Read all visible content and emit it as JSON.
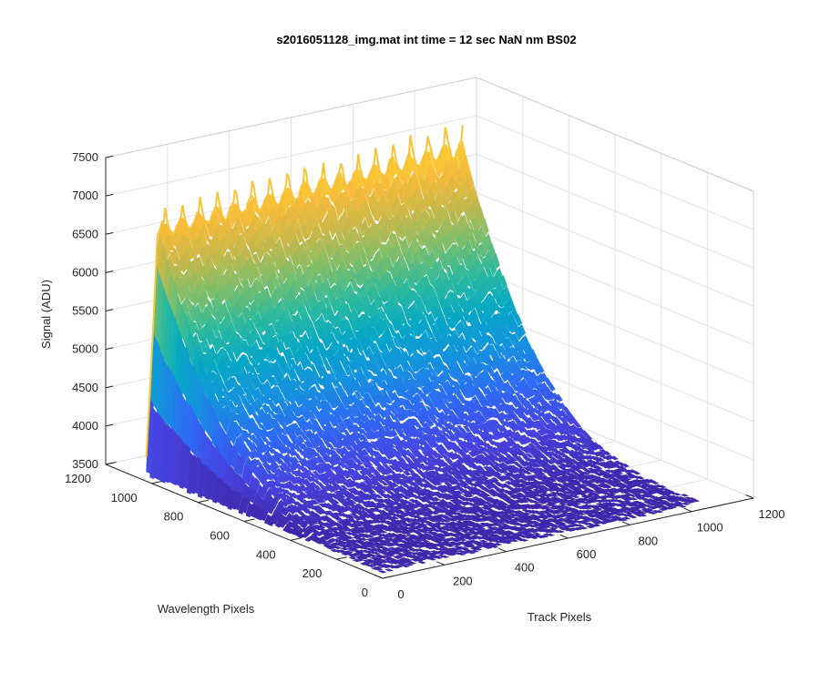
{
  "chart_data": {
    "type": "surface",
    "title": "s2016051128_img.mat int time = 12 sec  NaN nm BS02",
    "xlabel": "Track Pixels",
    "ylabel": "Wavelength Pixels",
    "zlabel": "Signal (ADU)",
    "xlim": [
      0,
      1200
    ],
    "ylim": [
      0,
      1200
    ],
    "zlim": [
      3500,
      7500
    ],
    "x_ticks": [
      "0",
      "200",
      "400",
      "600",
      "800",
      "1000",
      "1200"
    ],
    "y_ticks": [
      "0",
      "200",
      "400",
      "600",
      "800",
      "1000",
      "1200"
    ],
    "z_ticks": [
      "3500",
      "4000",
      "4500",
      "5000",
      "5500",
      "6000",
      "6500",
      "7000",
      "7500"
    ],
    "grid": true,
    "colormap": "parula",
    "colors": [
      "#3e26a8",
      "#4743e0",
      "#2e6af4",
      "#1592de",
      "#06a7c6",
      "#2ab99f",
      "#7abe6c",
      "#c6b84a",
      "#f8bb3a",
      "#f9d72e"
    ],
    "surface": {
      "track_range": [
        0,
        1024
      ],
      "wavelength_range": [
        0,
        1024
      ],
      "peak_signal": 7100,
      "base_signal": 3600,
      "ridge_count": 18,
      "edge_min_signal": 3650,
      "edge_max_signal": 6600
    }
  }
}
